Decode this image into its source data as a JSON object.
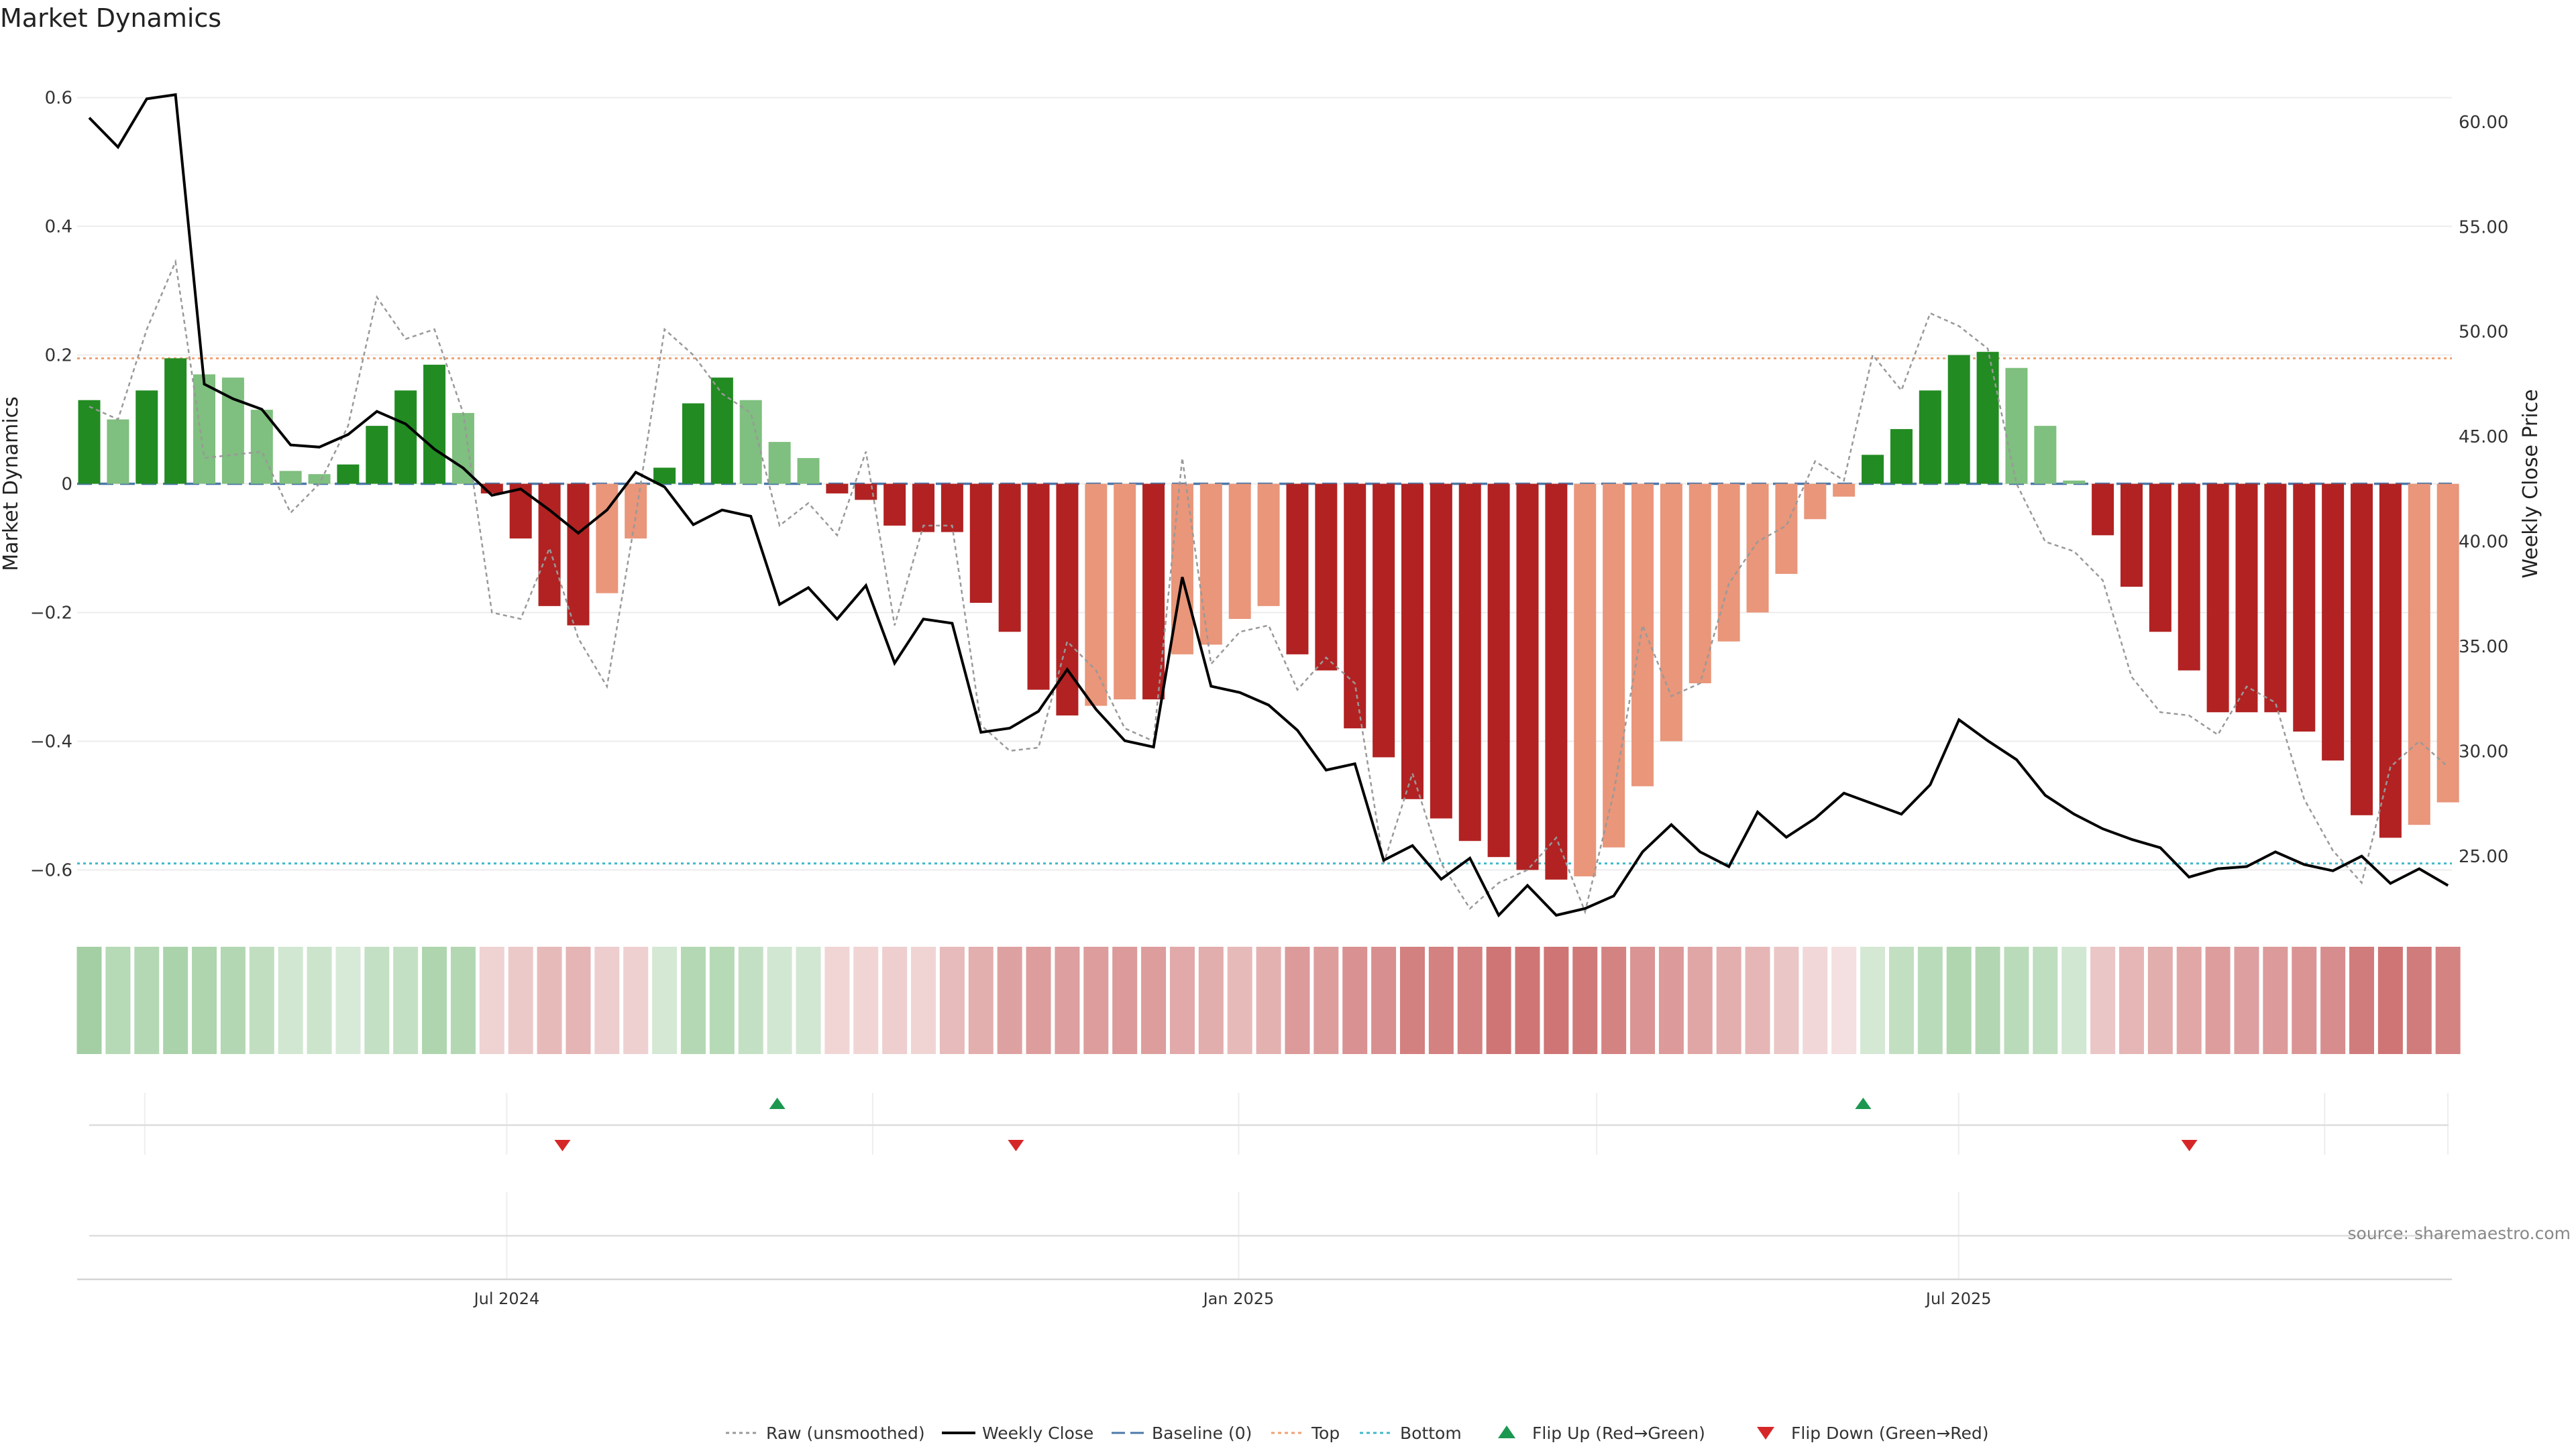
{
  "title": "Market Dynamics",
  "source": "source: sharemaestro.com",
  "colors": {
    "strong_green": "#228B22",
    "light_green": "#7FBF7F",
    "strong_red": "#B22222",
    "light_red": "#E9967A",
    "raw_line": "#999999",
    "close_line": "#000000",
    "baseline": "#4C78A8",
    "top": "#F0A070",
    "bottom": "#40B8C8",
    "flip_up": "#1A9850",
    "flip_down": "#D62728"
  },
  "chart_data": {
    "type": "bar",
    "title": "Market Dynamics",
    "ylabel": "Market Dynamics",
    "y2label": "Weekly Close Price",
    "ylim": [
      -0.66,
      0.66
    ],
    "y2lim": [
      22.5,
      63.0
    ],
    "yticks": [
      -0.6,
      -0.4,
      -0.2,
      0,
      0.2,
      0.4,
      0.6
    ],
    "ytick_labels": [
      "−0.6",
      "−0.4",
      "−0.2",
      "0",
      "0.2",
      "0.4",
      "0.6"
    ],
    "y2ticks": [
      25,
      30,
      35,
      40,
      45,
      50,
      55,
      60
    ],
    "y2tick_labels": [
      "25.00",
      "30.00",
      "35.00",
      "40.00",
      "45.00",
      "50.00",
      "55.00",
      "60.00"
    ],
    "x_range": [
      "2024-03-15",
      "2025-11-02"
    ],
    "x_ticks": [
      {
        "date": "2024-07-01",
        "label": "Jul 2024"
      },
      {
        "date": "2025-01-01",
        "label": "Jan 2025"
      },
      {
        "date": "2025-07-01",
        "label": "Jul 2025"
      }
    ],
    "top_threshold": 0.195,
    "bottom_threshold": -0.59,
    "baseline": 0,
    "grid": true,
    "legend_position": "bottom-center",
    "series": [
      {
        "name": "Market Dynamics",
        "values": [
          0.13,
          0.1,
          0.145,
          0.195,
          0.17,
          0.165,
          0.115,
          0.02,
          0.015,
          0.03,
          0.09,
          0.145,
          0.185,
          0.11,
          -0.015,
          -0.085,
          -0.19,
          -0.22,
          -0.17,
          -0.085,
          0.025,
          0.125,
          0.165,
          0.13,
          0.065,
          0.04,
          -0.015,
          -0.025,
          -0.065,
          -0.075,
          -0.075,
          -0.185,
          -0.23,
          -0.32,
          -0.36,
          -0.345,
          -0.335,
          -0.335,
          -0.265,
          -0.25,
          -0.21,
          -0.19,
          -0.265,
          -0.29,
          -0.38,
          -0.425,
          -0.49,
          -0.52,
          -0.555,
          -0.58,
          -0.6,
          -0.615,
          -0.61,
          -0.565,
          -0.47,
          -0.4,
          -0.31,
          -0.245,
          -0.2,
          -0.14,
          -0.055,
          -0.02,
          0.045,
          0.085,
          0.145,
          0.2,
          0.205,
          0.18,
          0.09,
          0.005,
          -0.08,
          -0.16,
          -0.23,
          -0.29,
          -0.355,
          -0.355,
          -0.355,
          -0.385,
          -0.43,
          -0.515,
          -0.55,
          -0.53,
          -0.495
        ]
      },
      {
        "name": "Raw (unsmoothed)",
        "values": [
          0.12,
          0.1,
          0.24,
          0.345,
          0.04,
          0.045,
          0.05,
          -0.045,
          0.0,
          0.09,
          0.29,
          0.225,
          0.24,
          0.11,
          -0.2,
          -0.21,
          -0.1,
          -0.24,
          -0.315,
          -0.05,
          0.24,
          0.2,
          0.14,
          0.11,
          -0.065,
          -0.03,
          -0.08,
          0.05,
          -0.22,
          -0.065,
          -0.065,
          -0.375,
          -0.415,
          -0.41,
          -0.245,
          -0.29,
          -0.38,
          -0.4,
          0.04,
          -0.28,
          -0.23,
          -0.22,
          -0.32,
          -0.27,
          -0.31,
          -0.59,
          -0.45,
          -0.59,
          -0.66,
          -0.62,
          -0.6,
          -0.55,
          -0.665,
          -0.48,
          -0.22,
          -0.33,
          -0.31,
          -0.155,
          -0.09,
          -0.065,
          0.035,
          0.005,
          0.2,
          0.145,
          0.265,
          0.245,
          0.21,
          0.0,
          -0.09,
          -0.105,
          -0.15,
          -0.3,
          -0.355,
          -0.36,
          -0.39,
          -0.315,
          -0.34,
          -0.49,
          -0.57,
          -0.62,
          -0.44,
          -0.4,
          -0.44
        ]
      },
      {
        "name": "Weekly Close",
        "values": [
          60.2,
          58.8,
          61.1,
          61.3,
          47.5,
          46.8,
          46.3,
          44.6,
          44.5,
          45.1,
          46.2,
          45.6,
          44.4,
          43.5,
          42.2,
          42.5,
          41.5,
          40.4,
          41.5,
          43.3,
          42.6,
          40.8,
          41.5,
          41.2,
          37.0,
          37.8,
          36.3,
          37.9,
          34.2,
          36.3,
          36.1,
          30.9,
          31.1,
          31.9,
          33.9,
          32.0,
          30.5,
          30.2,
          38.3,
          33.1,
          32.8,
          32.2,
          31.0,
          29.1,
          29.4,
          24.8,
          25.5,
          23.9,
          24.9,
          21.5,
          23.6,
          20.8,
          22.5,
          23.1,
          25.2,
          26.5,
          25.2,
          24.5,
          27.1,
          25.9,
          26.8,
          28.0,
          27.5,
          27.0,
          28.4,
          31.5,
          30.5,
          29.6,
          27.9,
          27.0,
          26.3,
          25.8,
          25.4,
          24.0,
          24.4,
          24.5,
          25.2,
          24.6,
          24.3,
          25.0,
          23.7,
          24.4,
          23.6
        ]
      }
    ],
    "sentiment_strip": [
      0.53,
      0.42,
      0.43,
      0.49,
      0.47,
      0.44,
      0.36,
      0.26,
      0.3,
      0.23,
      0.34,
      0.34,
      0.47,
      0.44,
      0.26,
      0.31,
      0.4,
      0.43,
      0.29,
      0.27,
      0.25,
      0.43,
      0.42,
      0.34,
      0.26,
      0.26,
      0.24,
      0.24,
      0.28,
      0.25,
      0.39,
      0.47,
      0.55,
      0.57,
      0.56,
      0.57,
      0.59,
      0.57,
      0.5,
      0.48,
      0.4,
      0.45,
      0.59,
      0.57,
      0.64,
      0.65,
      0.74,
      0.73,
      0.73,
      0.8,
      0.8,
      0.8,
      0.78,
      0.72,
      0.62,
      0.59,
      0.52,
      0.47,
      0.42,
      0.33,
      0.23,
      0.18,
      0.25,
      0.35,
      0.4,
      0.46,
      0.45,
      0.4,
      0.37,
      0.26,
      0.33,
      0.42,
      0.48,
      0.51,
      0.57,
      0.56,
      0.59,
      0.62,
      0.66,
      0.76,
      0.8,
      0.76,
      0.72
    ],
    "flip_up_dates": [
      "2024-09-07",
      "2025-06-07"
    ],
    "flip_down_dates": [
      "2024-07-15",
      "2024-11-06",
      "2025-08-28"
    ],
    "legend": [
      {
        "label": "Raw (unsmoothed)",
        "style": "dotted-line",
        "color": "#999999"
      },
      {
        "label": "Weekly Close",
        "style": "solid-line",
        "color": "#000000"
      },
      {
        "label": "Baseline (0)",
        "style": "dashed-line",
        "color": "#4C78A8"
      },
      {
        "label": "Top",
        "style": "dotted-line",
        "color": "#F0A070"
      },
      {
        "label": "Bottom",
        "style": "dotted-line",
        "color": "#40B8C8"
      },
      {
        "label": "Flip Up (Red→Green)",
        "style": "triangle-up",
        "color": "#1A9850"
      },
      {
        "label": "Flip Down (Green→Red)",
        "style": "triangle-down",
        "color": "#D62728"
      }
    ]
  }
}
